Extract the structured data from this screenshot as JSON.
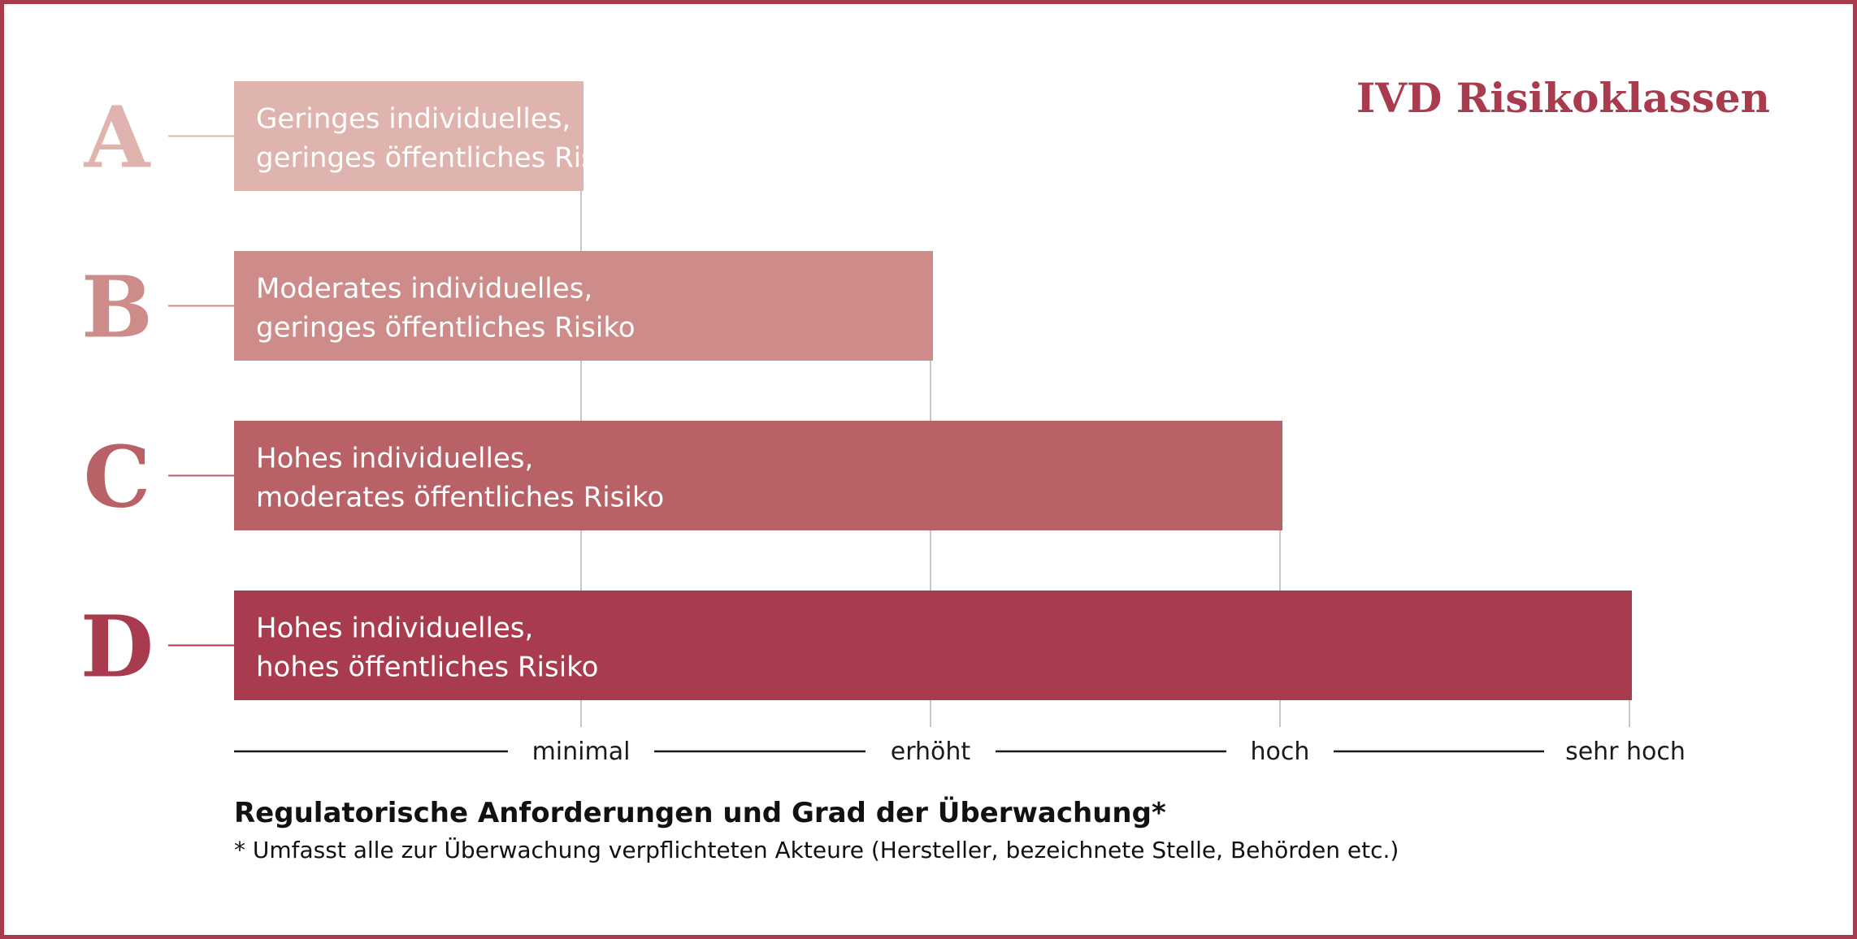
{
  "chart_data": {
    "type": "bar",
    "title": "IVD Risikoklassen",
    "xlabel": "Regulatorische Anforderungen und Grad der Überwachung*",
    "footnote": "* Umfasst alle zur Überwachung verpflichteten Akteure (Hersteller, bezeichnete Stelle, Behörden etc.)",
    "orientation": "horizontal",
    "x_ticks": [
      "minimal",
      "erhöht",
      "hoch",
      "sehr hoch"
    ],
    "xlim": [
      0,
      4
    ],
    "grid": false,
    "categories": [
      "A",
      "B",
      "C",
      "D"
    ],
    "values": [
      1,
      2,
      3,
      4
    ],
    "bar_labels": [
      [
        "Geringes individuelles,",
        "geringes öffentliches Risiko"
      ],
      [
        "Moderates individuelles,",
        "geringes öffentliches Risiko"
      ],
      [
        "Hohes individuelles,",
        "moderates öffentliches Risiko"
      ],
      [
        "Hohes individuelles,",
        "hohes öffentliches Risiko"
      ]
    ],
    "colors": [
      "#dfb4af",
      "#cd8c89",
      "#b86268",
      "#a83c4e"
    ]
  },
  "colors": {
    "accent": "#a83c4e",
    "guide": "#c8c8c8",
    "axis": "#1a1a1a"
  }
}
